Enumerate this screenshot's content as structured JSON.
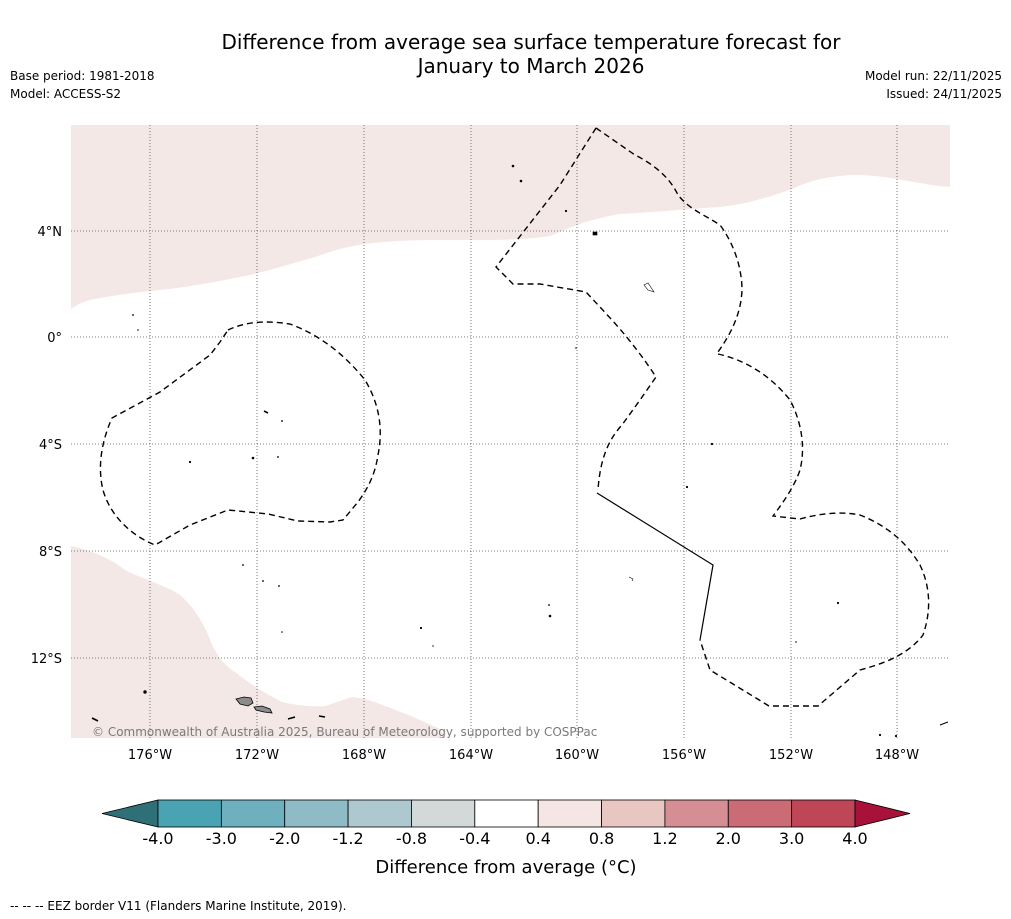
{
  "header": {
    "title_line1": "Difference from average sea surface temperature forecast for",
    "title_line2": "January to March 2026",
    "base_period": "Base period: 1981-2018",
    "model": "Model: ACCESS-S2",
    "model_run": "Model run: 22/11/2025",
    "issued": "Issued: 24/11/2025"
  },
  "map": {
    "credit": "© Commonwealth of Australia 2025, Bureau of Meteorology, supported by COSPPac",
    "lat_labels": [
      "4°N",
      "0°",
      "4°S",
      "8°S",
      "12°S"
    ],
    "lon_labels": [
      "176°W",
      "172°W",
      "168°W",
      "164°W",
      "160°W",
      "156°W",
      "152°W",
      "148°W"
    ],
    "colors": {
      "warm_anomaly": "#f4e8e6",
      "land": "#8c8c8c",
      "gridline": "#555555"
    }
  },
  "colorbar": {
    "title": "Difference from average (°C)",
    "tick_labels": [
      "-4.0",
      "-3.0",
      "-2.0",
      "-1.2",
      "-0.8",
      "-0.4",
      "0.4",
      "0.8",
      "1.2",
      "2.0",
      "3.0",
      "4.0"
    ],
    "low_extend_color": "#2f6f78",
    "high_extend_color": "#a8123a",
    "segment_colors": [
      "#4aa3b3",
      "#6fb0bf",
      "#8fbbc6",
      "#adc9cf",
      "#d3d8d9",
      "#ffffff",
      "#f5e6e4",
      "#e8c6c2",
      "#d58f94",
      "#cb6b75",
      "#bf4657"
    ]
  },
  "footer": {
    "eez_legend": "--  --  -- EEZ border V11 (Flanders Marine Institute, 2019)."
  }
}
